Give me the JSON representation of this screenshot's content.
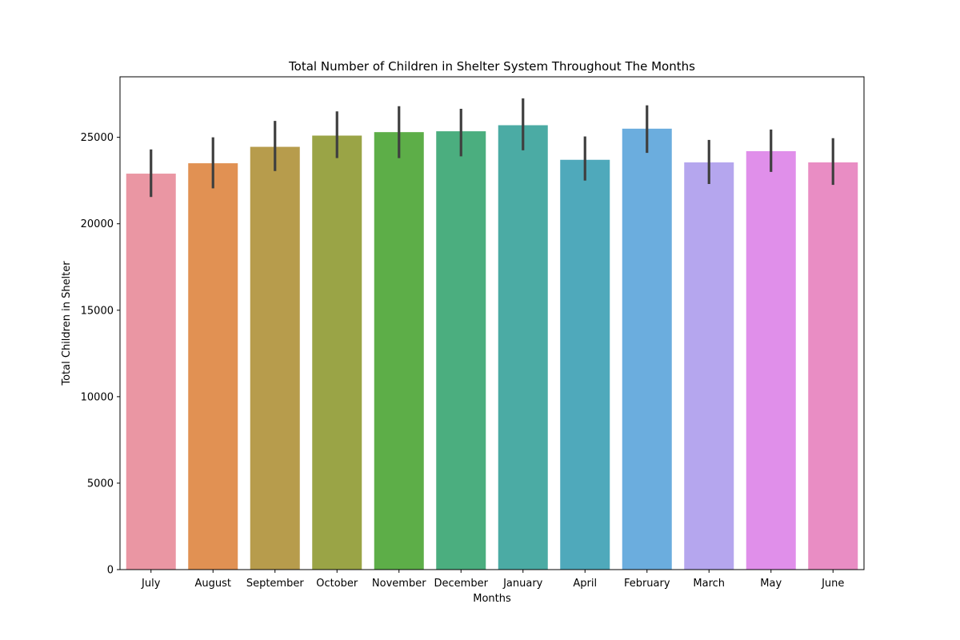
{
  "chart_data": {
    "type": "bar",
    "title": "Total Number of Children in Shelter System Throughout The Months",
    "xlabel": "Months",
    "ylabel": "Total Children in Shelter",
    "ylim": [
      0,
      28500
    ],
    "yticks": [
      0,
      5000,
      10000,
      15000,
      20000,
      25000
    ],
    "grid": false,
    "categories": [
      "July",
      "August",
      "September",
      "October",
      "November",
      "December",
      "January",
      "April",
      "February",
      "March",
      "May",
      "June"
    ],
    "values": [
      22900,
      23500,
      24450,
      25100,
      25300,
      25350,
      25700,
      23700,
      25500,
      23550,
      24200,
      23550
    ],
    "error_low": [
      21550,
      22050,
      23050,
      23800,
      23800,
      23900,
      24250,
      22500,
      24100,
      22300,
      23000,
      22250
    ],
    "error_high": [
      24300,
      25000,
      25950,
      26500,
      26800,
      26650,
      27250,
      25050,
      26850,
      24850,
      25450,
      24950
    ],
    "colors": [
      "#ea96a3",
      "#e19153",
      "#b79c4c",
      "#9aa446",
      "#5dae48",
      "#4bae7f",
      "#4baba4",
      "#4fa9bb",
      "#6badde",
      "#b5a6ee",
      "#e08fea",
      "#e98dc4"
    ]
  }
}
